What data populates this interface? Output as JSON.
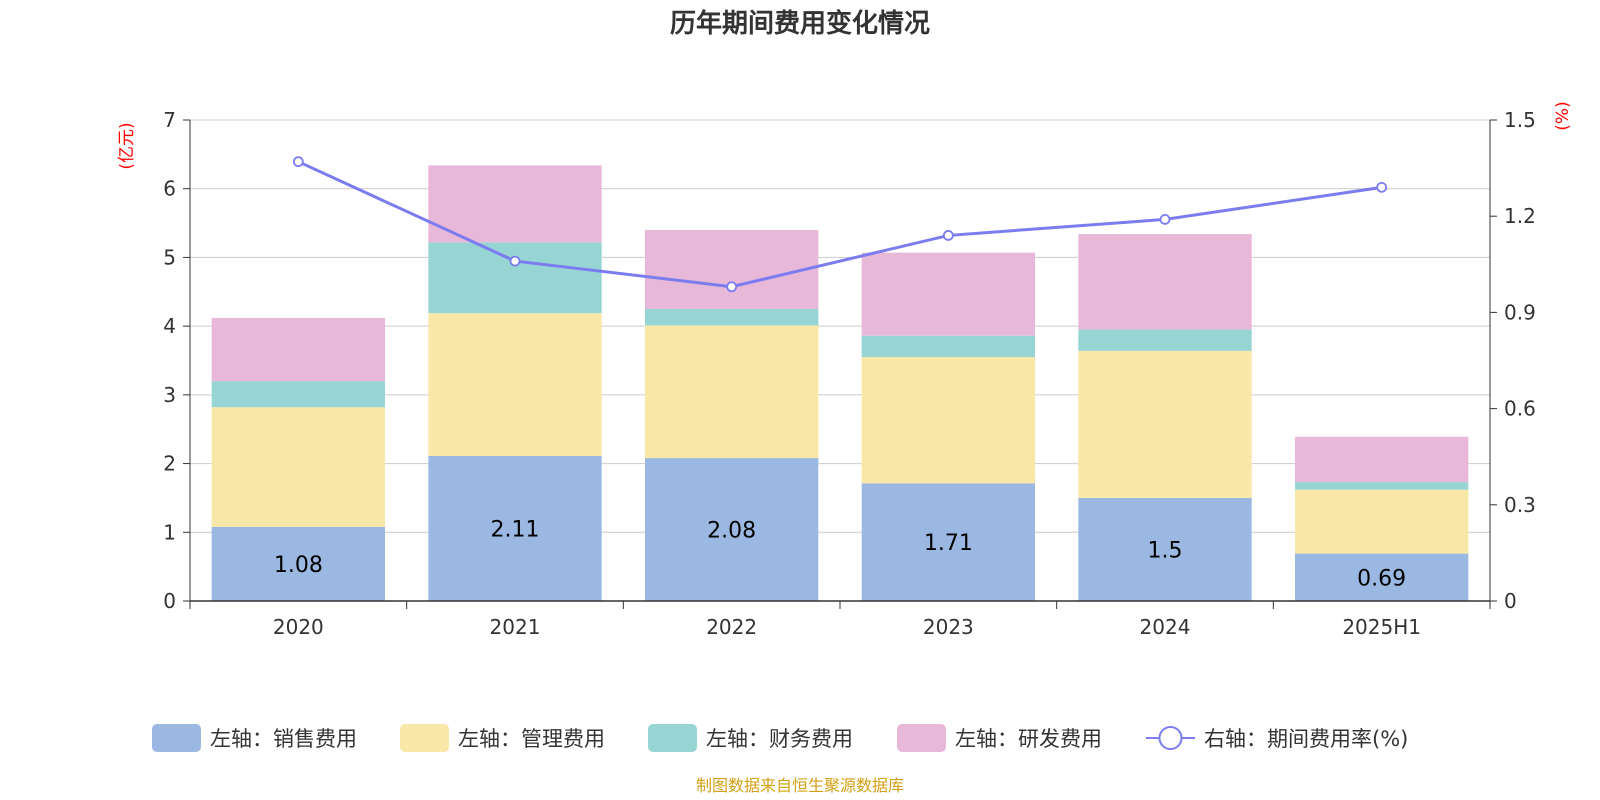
{
  "chart_data": {
    "type": "bar",
    "title": "历年期间费用变化情况",
    "categories": [
      "2020",
      "2021",
      "2022",
      "2023",
      "2024",
      "2025H1"
    ],
    "left_axis": {
      "unit": "(亿元)",
      "ylim": [
        0,
        7
      ],
      "ticks": [
        "0",
        "1",
        "2",
        "3",
        "4",
        "5",
        "6",
        "7"
      ]
    },
    "right_axis": {
      "unit": "(%)",
      "ylim": [
        0,
        1.5
      ],
      "ticks": [
        "0",
        "0.3",
        "0.6",
        "0.9",
        "1.2",
        "1.5"
      ]
    },
    "grid": true,
    "legend_position": "bottom",
    "series": [
      {
        "name": "左轴：销售费用",
        "type": "bar",
        "stack": true,
        "axis": "left",
        "color": "#9bb8e2",
        "values": [
          1.08,
          2.11,
          2.08,
          1.71,
          1.5,
          0.69
        ],
        "labels": [
          "1.08",
          "2.11",
          "2.08",
          "1.71",
          "1.5",
          "0.69"
        ]
      },
      {
        "name": "左轴：管理费用",
        "type": "bar",
        "stack": true,
        "axis": "left",
        "color": "#f8e7a7",
        "values": [
          1.74,
          2.08,
          1.93,
          1.84,
          2.14,
          0.93
        ]
      },
      {
        "name": "左轴：财务费用",
        "type": "bar",
        "stack": true,
        "axis": "left",
        "color": "#97d4d4",
        "values": [
          0.38,
          1.03,
          0.24,
          0.31,
          0.31,
          0.11
        ]
      },
      {
        "name": "左轴：研发费用",
        "type": "bar",
        "stack": true,
        "axis": "left",
        "color": "#e8b8d9",
        "values": [
          0.92,
          1.12,
          1.15,
          1.21,
          1.39,
          0.66
        ]
      },
      {
        "name": "右轴：期间费用率(%)",
        "type": "line",
        "axis": "right",
        "color": "#7b7cf0",
        "values": [
          1.37,
          1.06,
          0.98,
          1.14,
          1.19,
          1.29
        ]
      }
    ]
  },
  "source": "制图数据来自恒生聚源数据库"
}
